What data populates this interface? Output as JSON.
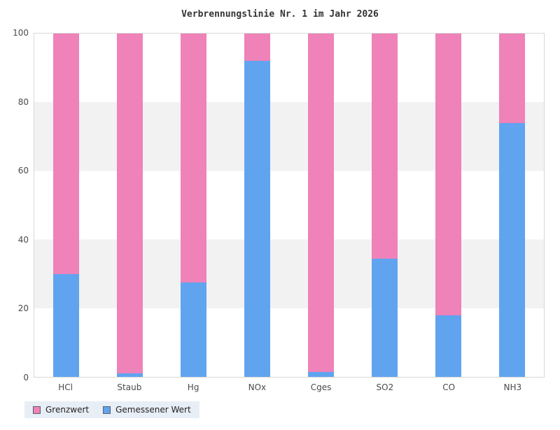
{
  "chart_data": {
    "type": "bar",
    "stacked": true,
    "title": "Verbrennungslinie Nr. 1 im Jahr 2026",
    "categories": [
      "HCl",
      "Staub",
      "Hg",
      "NOx",
      "Cges",
      "SO2",
      "CO",
      "NH3"
    ],
    "series": [
      {
        "name": "Gemessener Wert",
        "color": "#60a4f0",
        "values": [
          30,
          1,
          27.5,
          92,
          1.5,
          34.5,
          18,
          74
        ]
      },
      {
        "name": "Grenzwert",
        "color": "#ef82b8",
        "values": [
          70,
          99,
          72.5,
          8,
          98.5,
          65.5,
          82,
          26
        ]
      }
    ],
    "ylim": [
      0,
      100
    ],
    "yticks": [
      0,
      20,
      40,
      60,
      80,
      100
    ],
    "xlabel": "",
    "ylabel": "",
    "grid": "alternating-horizontal-bands",
    "band_color": "#f2f2f2",
    "legend_position": "bottom-left",
    "legend": [
      {
        "label": "Grenzwert",
        "color": "#ef82b8"
      },
      {
        "label": "Gemessener Wert",
        "color": "#60a4f0"
      }
    ]
  }
}
